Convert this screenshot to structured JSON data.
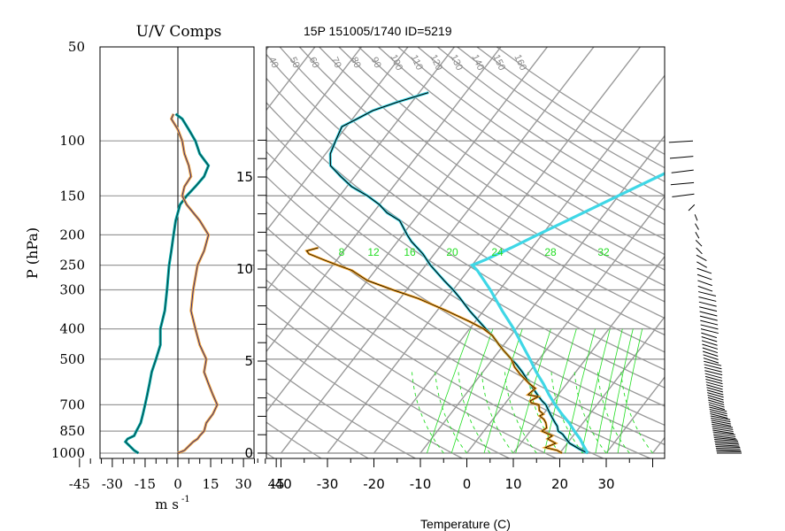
{
  "left_panel": {
    "title": "U/V Comps",
    "ylabel": "P (hPa)",
    "xlabel": "m s",
    "xlabel_exp": "-1"
  },
  "right_panel": {
    "title": "15P 151005/1740 ID=5219",
    "xlabel": "Temperature (C)"
  },
  "colors": {
    "u_wind": "#00a7a7",
    "v_wind": "#f2a53a",
    "temperature": "#000000",
    "dewpoint": "#f2a020",
    "parcel": "#3fd7e6",
    "grid": "#999999",
    "mixing_ratio": "#22dd22"
  },
  "chart_data": [
    {
      "type": "line",
      "name": "uv-components",
      "title": "U/V Comps",
      "ylabel": "P (hPa)",
      "xlabel": "m s-1",
      "yscale": "log",
      "ylim": [
        1000,
        50
      ],
      "xlim": [
        -50,
        50
      ],
      "x_ticks": [
        -45,
        -30,
        -15,
        0,
        15,
        30,
        45
      ],
      "x_tick_labels": [
        "-45",
        "-30",
        "-15",
        "0",
        "15",
        "30",
        "45"
      ],
      "y_ticks": [
        50,
        100,
        150,
        200,
        250,
        300,
        400,
        500,
        700,
        850,
        1000
      ],
      "y_tick_labels": [
        "50",
        "100",
        "150",
        "200",
        "250",
        "300",
        "400",
        "500",
        "700",
        "850",
        "1000"
      ],
      "series": [
        {
          "key": "u",
          "p": [
            1000,
            980,
            950,
            920,
            900,
            880,
            850,
            800,
            750,
            700,
            650,
            600,
            550,
            500,
            450,
            400,
            350,
            300,
            250,
            225,
            200,
            180,
            160,
            150,
            140,
            130,
            120,
            110,
            100,
            92,
            85,
            82
          ],
          "values": [
            -18,
            -20,
            -22,
            -24,
            -23,
            -20,
            -19,
            -17,
            -16,
            -15,
            -14,
            -13,
            -12,
            -10,
            -8,
            -8,
            -6,
            -5,
            -4,
            -3,
            -2,
            -1,
            1,
            4,
            8,
            12,
            14,
            10,
            8,
            5,
            2,
            -1
          ]
        },
        {
          "key": "v",
          "p": [
            1000,
            980,
            950,
            920,
            900,
            880,
            850,
            800,
            750,
            700,
            650,
            600,
            550,
            500,
            450,
            400,
            350,
            300,
            250,
            225,
            200,
            180,
            160,
            150,
            140,
            130,
            120,
            110,
            100,
            92,
            85,
            82
          ],
          "values": [
            0,
            3,
            5,
            7,
            9,
            10,
            12,
            13,
            16,
            18,
            16,
            14,
            12,
            13,
            10,
            8,
            6,
            7,
            9,
            12,
            14,
            10,
            4,
            2,
            3,
            6,
            5,
            3,
            2,
            0,
            -3,
            -2
          ]
        }
      ]
    },
    {
      "type": "line",
      "name": "skew-t",
      "title": "15P 151005/1740 ID=5219",
      "xlabel": "Temperature (C)",
      "xlim": [
        -45,
        40
      ],
      "x_ticks": [
        -40,
        -30,
        -20,
        -10,
        0,
        10,
        20,
        30
      ],
      "x_tick_labels": [
        "-40",
        "-30",
        "-20",
        "-10",
        "0",
        "10",
        "20",
        "30"
      ],
      "height_axis_ticks": [
        0,
        5,
        10,
        15
      ],
      "height_axis_labels": [
        "0",
        "5",
        "10",
        "15"
      ],
      "mixing_ratio_labels": [
        "8",
        "12",
        "16",
        "20",
        "24",
        "28",
        "32"
      ],
      "theta_e_labels": [
        "40",
        "50",
        "60",
        "70",
        "80",
        "90",
        "100",
        "110",
        "120",
        "130",
        "140",
        "150",
        "160"
      ],
      "series": [
        {
          "key": "temperature",
          "p": [
            1000,
            970,
            950,
            930,
            900,
            870,
            850,
            820,
            800,
            770,
            750,
            720,
            700,
            680,
            650,
            620,
            600,
            570,
            550,
            520,
            500,
            470,
            450,
            420,
            400,
            380,
            350,
            320,
            300,
            280,
            250,
            230,
            210,
            200,
            180,
            170,
            160,
            150,
            140,
            130,
            120,
            110,
            100,
            90,
            85,
            80,
            75,
            70
          ],
          "values": [
            26,
            23.5,
            22,
            20.5,
            19,
            17.5,
            16,
            15,
            14,
            12.5,
            11.5,
            10,
            9,
            7.5,
            5.5,
            3.5,
            2,
            0,
            -1.5,
            -4,
            -6,
            -9,
            -11,
            -14,
            -16.5,
            -19,
            -23,
            -27,
            -30,
            -33.5,
            -39,
            -42.5,
            -47,
            -49,
            -53,
            -57,
            -60,
            -64,
            -69,
            -73,
            -77,
            -79,
            -80,
            -81,
            -79,
            -77,
            -73,
            -68
          ]
        },
        {
          "key": "dewpoint",
          "p": [
            1000,
            980,
            960,
            950,
            930,
            900,
            880,
            850,
            830,
            800,
            780,
            760,
            750,
            730,
            700,
            690,
            680,
            660,
            650,
            620,
            600,
            560,
            530,
            500,
            470,
            450,
            420,
            400,
            380,
            350,
            320,
            300,
            280,
            260,
            250,
            240,
            230,
            225,
            220
          ],
          "values": [
            20.5,
            19,
            16,
            16.5,
            17.5,
            15,
            15.5,
            12.5,
            13,
            12,
            11,
            9.5,
            10,
            8.5,
            7.5,
            5.5,
            5,
            6,
            3.5,
            4,
            2,
            -1.5,
            -4,
            -6,
            -9,
            -11,
            -14,
            -17,
            -21,
            -28,
            -36,
            -43,
            -50,
            -55,
            -59,
            -63,
            -67,
            -68,
            -66
          ]
        },
        {
          "key": "parcel",
          "p": [
            1000,
            950,
            900,
            850,
            800,
            750,
            700,
            650,
            600,
            550,
            500,
            450,
            400,
            350,
            300,
            260,
            250,
            240,
            220,
            200,
            180,
            160,
            140,
            120,
            100,
            85,
            75
          ],
          "values": [
            26,
            24,
            22,
            19.5,
            17,
            14,
            11,
            8,
            5,
            1.5,
            -2,
            -6,
            -10.5,
            -16,
            -22,
            -28,
            -30,
            -28,
            -24.5,
            -21,
            -17,
            -12.5,
            -7.5,
            -1.5,
            6.5,
            14,
            20
          ]
        }
      ]
    }
  ]
}
